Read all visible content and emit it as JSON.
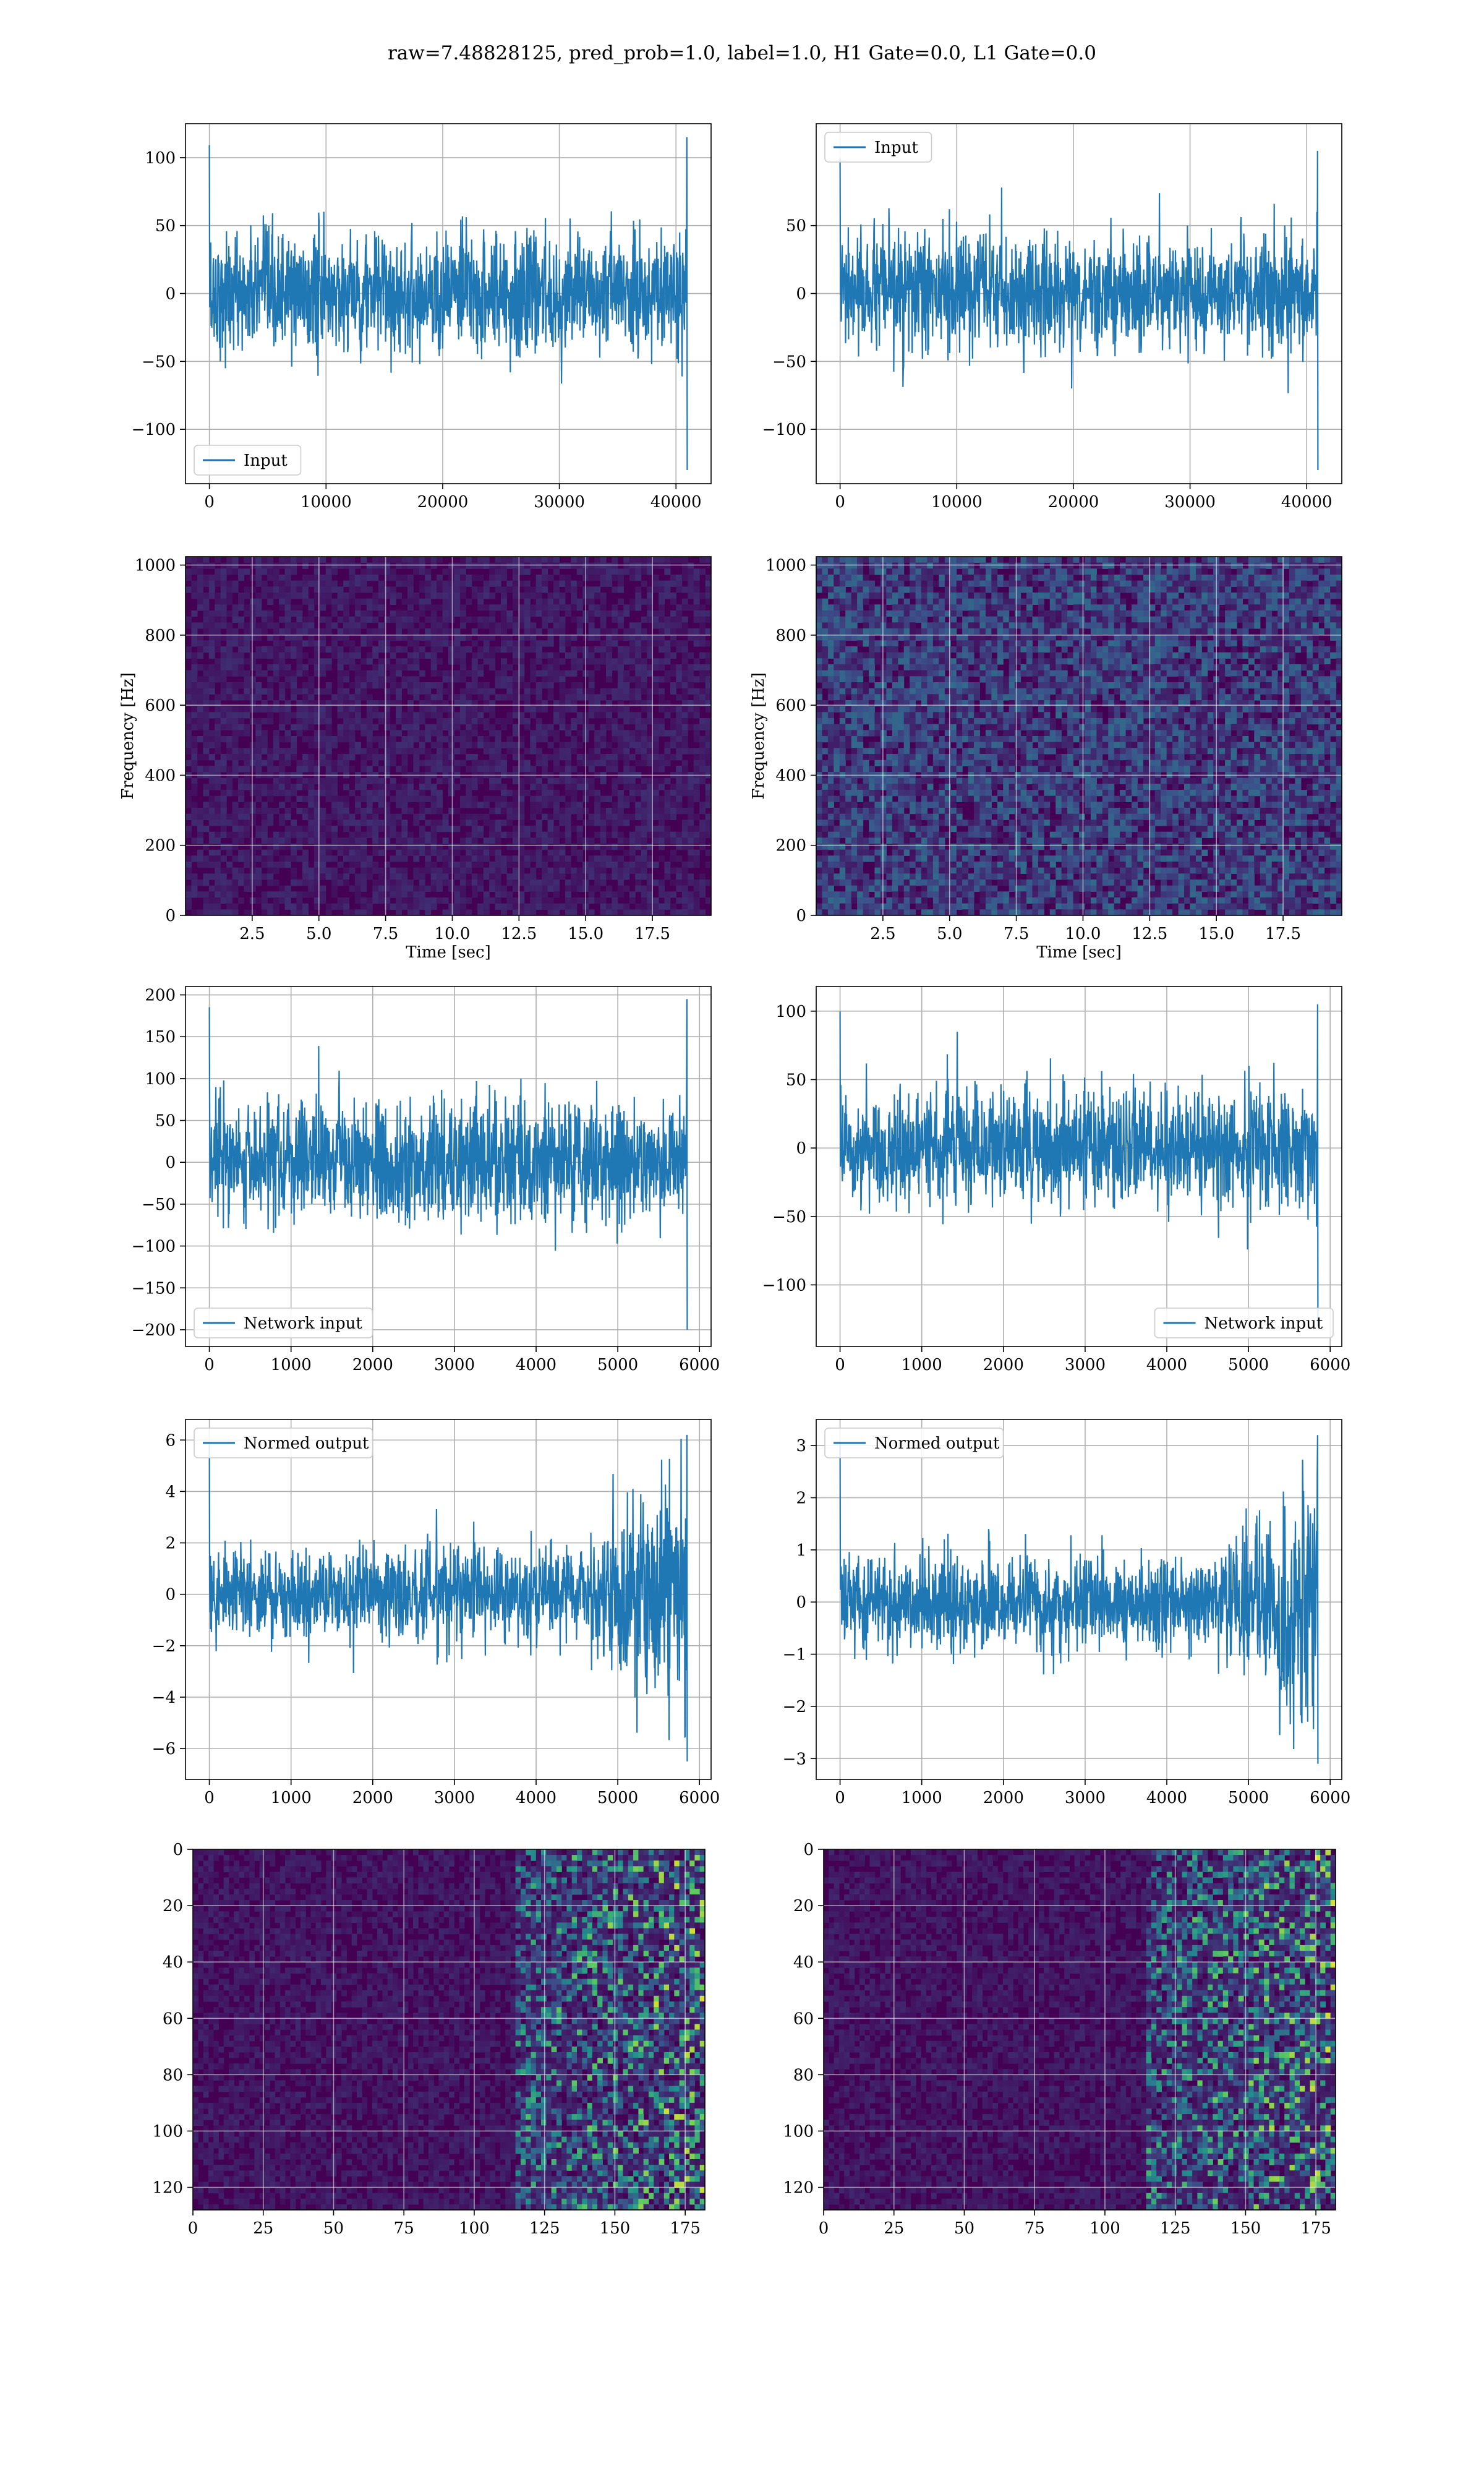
{
  "suptitle": "raw=7.48828125, pred_prob=1.0, label=1.0, H1 Gate=0.0, L1 Gate=0.0",
  "colors": {
    "line": "#1f77b4",
    "grid": "#b0b0b0",
    "spectro_bg": "#440154"
  },
  "chart_data": [
    {
      "id": "input-h1",
      "type": "line",
      "series": [
        {
          "name": "Input",
          "length": 40960,
          "amplitude_range": [
            -130,
            115
          ]
        }
      ],
      "xlim": [
        -2048,
        43008
      ],
      "ylim": [
        -140,
        125
      ],
      "xticks": [
        0,
        10000,
        20000,
        30000,
        40000
      ],
      "yticks": [
        -100,
        -50,
        0,
        50,
        100
      ],
      "xticklabels": [
        "0",
        "10000",
        "20000",
        "30000",
        "40000"
      ],
      "yticklabels": [
        "−100",
        "−50",
        "0",
        "50",
        "100"
      ],
      "legend": "lower left",
      "grid": true
    },
    {
      "id": "input-l1",
      "type": "line",
      "series": [
        {
          "name": "Input",
          "length": 40960,
          "amplitude_range": [
            -130,
            105
          ]
        }
      ],
      "xlim": [
        -2048,
        43008
      ],
      "ylim": [
        -140,
        125
      ],
      "xticks": [
        0,
        10000,
        20000,
        30000,
        40000
      ],
      "yticks": [
        -100,
        -50,
        0,
        50
      ],
      "xticklabels": [
        "0",
        "10000",
        "20000",
        "30000",
        "40000"
      ],
      "yticklabels": [
        "−100",
        "−50",
        "0",
        "50"
      ],
      "legend": "upper left",
      "grid": true
    },
    {
      "id": "spectrogram-h1",
      "type": "heatmap",
      "xlabel": "Time [sec]",
      "ylabel": "Frequency [Hz]",
      "xlim": [
        0,
        19.7
      ],
      "ylim": [
        0,
        1024
      ],
      "xticks": [
        2.5,
        5.0,
        7.5,
        10.0,
        12.5,
        15.0,
        17.5
      ],
      "yticks": [
        0,
        200,
        400,
        600,
        800,
        1000
      ],
      "xticklabels": [
        "2.5",
        "5.0",
        "7.5",
        "10.0",
        "12.5",
        "15.0",
        "17.5"
      ],
      "yticklabels": [
        "0",
        "200",
        "400",
        "600",
        "800",
        "1000"
      ],
      "colormap": "viridis",
      "grid": true
    },
    {
      "id": "spectrogram-l1",
      "type": "heatmap",
      "xlabel": "Time [sec]",
      "ylabel": "Frequency [Hz]",
      "xlim": [
        0,
        19.7
      ],
      "ylim": [
        0,
        1024
      ],
      "xticks": [
        2.5,
        5.0,
        7.5,
        10.0,
        12.5,
        15.0,
        17.5
      ],
      "yticks": [
        0,
        200,
        400,
        600,
        800,
        1000
      ],
      "xticklabels": [
        "2.5",
        "5.0",
        "7.5",
        "10.0",
        "12.5",
        "15.0",
        "17.5"
      ],
      "yticklabels": [
        "0",
        "200",
        "400",
        "600",
        "800",
        "1000"
      ],
      "colormap": "viridis",
      "grid": true
    },
    {
      "id": "network-input-h1",
      "type": "line",
      "series": [
        {
          "name": "Network input",
          "length": 5850,
          "amplitude_range": [
            -200,
            195
          ]
        }
      ],
      "xlim": [
        -292,
        6142
      ],
      "ylim": [
        -220,
        210
      ],
      "xticks": [
        0,
        1000,
        2000,
        3000,
        4000,
        5000,
        6000
      ],
      "yticks": [
        -200,
        -150,
        -100,
        -50,
        0,
        50,
        100,
        150,
        200
      ],
      "xticklabels": [
        "0",
        "1000",
        "2000",
        "3000",
        "4000",
        "5000",
        "6000"
      ],
      "yticklabels": [
        "−200",
        "−150",
        "−100",
        "−50",
        "0",
        "50",
        "100",
        "150",
        "200"
      ],
      "legend": "lower left",
      "grid": true
    },
    {
      "id": "network-input-l1",
      "type": "line",
      "series": [
        {
          "name": "Network input",
          "length": 5850,
          "amplitude_range": [
            -130,
            105
          ]
        }
      ],
      "xlim": [
        -292,
        6142
      ],
      "ylim": [
        -145,
        118
      ],
      "xticks": [
        0,
        1000,
        2000,
        3000,
        4000,
        5000,
        6000
      ],
      "yticks": [
        -100,
        -50,
        0,
        50,
        100
      ],
      "xticklabels": [
        "0",
        "1000",
        "2000",
        "3000",
        "4000",
        "5000",
        "6000"
      ],
      "yticklabels": [
        "−100",
        "−50",
        "0",
        "50",
        "100"
      ],
      "legend": "lower right",
      "grid": true
    },
    {
      "id": "normed-output-h1",
      "type": "line",
      "series": [
        {
          "name": "Normed output",
          "length": 5850,
          "amplitude_range": [
            -6.5,
            6.2
          ]
        }
      ],
      "xlim": [
        -292,
        6142
      ],
      "ylim": [
        -7.2,
        6.8
      ],
      "xticks": [
        0,
        1000,
        2000,
        3000,
        4000,
        5000,
        6000
      ],
      "yticks": [
        -6,
        -4,
        -2,
        0,
        2,
        4,
        6
      ],
      "xticklabels": [
        "0",
        "1000",
        "2000",
        "3000",
        "4000",
        "5000",
        "6000"
      ],
      "yticklabels": [
        "−6",
        "−4",
        "−2",
        "0",
        "2",
        "4",
        "6"
      ],
      "legend": "upper left",
      "grid": true
    },
    {
      "id": "normed-output-l1",
      "type": "line",
      "series": [
        {
          "name": "Normed output",
          "length": 5850,
          "amplitude_range": [
            -3.1,
            3.2
          ]
        }
      ],
      "xlim": [
        -292,
        6142
      ],
      "ylim": [
        -3.4,
        3.5
      ],
      "xticks": [
        0,
        1000,
        2000,
        3000,
        4000,
        5000,
        6000
      ],
      "yticks": [
        -3,
        -2,
        -1,
        0,
        1,
        2,
        3
      ],
      "xticklabels": [
        "0",
        "1000",
        "2000",
        "3000",
        "4000",
        "5000",
        "6000"
      ],
      "yticklabels": [
        "−3",
        "−2",
        "−1",
        "0",
        "1",
        "2",
        "3"
      ],
      "legend": "upper left",
      "grid": true
    },
    {
      "id": "feature-map-h1",
      "type": "heatmap",
      "rows": 128,
      "cols": 182,
      "xlim": [
        0,
        182
      ],
      "ylim": [
        128,
        0
      ],
      "xticks": [
        0,
        25,
        50,
        75,
        100,
        125,
        150,
        175
      ],
      "yticks": [
        0,
        20,
        40,
        60,
        80,
        100,
        120
      ],
      "xticklabels": [
        "0",
        "25",
        "50",
        "75",
        "100",
        "125",
        "150",
        "175"
      ],
      "yticklabels": [
        "0",
        "20",
        "40",
        "60",
        "80",
        "100",
        "120"
      ],
      "colormap": "viridis",
      "grid": true
    },
    {
      "id": "feature-map-l1",
      "type": "heatmap",
      "rows": 128,
      "cols": 182,
      "xlim": [
        0,
        182
      ],
      "ylim": [
        128,
        0
      ],
      "xticks": [
        0,
        25,
        50,
        75,
        100,
        125,
        150,
        175
      ],
      "yticks": [
        0,
        20,
        40,
        60,
        80,
        100,
        120
      ],
      "xticklabels": [
        "0",
        "25",
        "50",
        "75",
        "100",
        "125",
        "150",
        "175"
      ],
      "yticklabels": [
        "0",
        "20",
        "40",
        "60",
        "80",
        "100",
        "120"
      ],
      "colormap": "viridis",
      "grid": true
    }
  ]
}
